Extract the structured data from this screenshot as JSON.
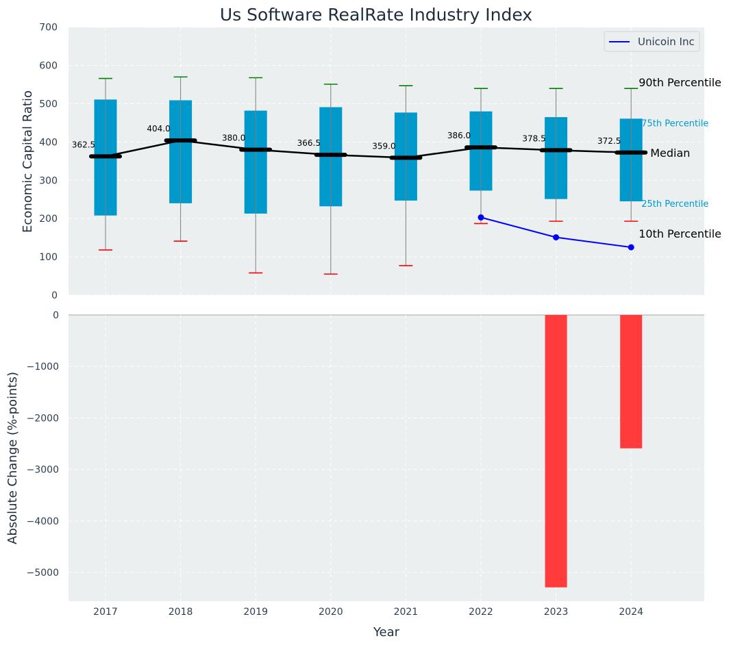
{
  "colors": {
    "box": "#0099cc",
    "whisker_top": "#008000",
    "whisker_bottom": "#ff0000",
    "median_line": "#000000",
    "company_line": "#0000ff",
    "change_bar": "#ff3b3b",
    "panel_bg": "#ebeff0"
  },
  "chart_data": [
    {
      "type": "box",
      "title": "Us Software RealRate Industry Index",
      "ylabel": "Economic Capital Ratio",
      "ylim": [
        0,
        700
      ],
      "yticks": [
        0,
        100,
        200,
        300,
        400,
        500,
        600,
        700
      ],
      "categories": [
        "2017",
        "2018",
        "2019",
        "2020",
        "2021",
        "2022",
        "2023",
        "2024"
      ],
      "p10": [
        118,
        141,
        58,
        55,
        77,
        187,
        193,
        193
      ],
      "p25": [
        208,
        240,
        213,
        232,
        247,
        273,
        251,
        245
      ],
      "median": [
        362.5,
        404.0,
        380.0,
        366.5,
        359.0,
        386.0,
        378.5,
        372.5
      ],
      "median_labels": [
        "362.5",
        "404.0",
        "380.0",
        "366.5",
        "359.0",
        "386.0",
        "378.5",
        "372.5"
      ],
      "p75": [
        511,
        509,
        482,
        491,
        477,
        480,
        465,
        461
      ],
      "p90": [
        566,
        570,
        568,
        551,
        547,
        540,
        540,
        540
      ],
      "percentile_labels": {
        "p90": "90th Percentile",
        "p75": "75th Percentile",
        "median": "Median",
        "p25": "25th Percentile",
        "p10": "10th Percentile"
      },
      "legend": {
        "position": "top-right",
        "entries": [
          "Unicoin Inc"
        ]
      },
      "series": [
        {
          "name": "Unicoin Inc",
          "x": [
            "2022",
            "2023",
            "2024"
          ],
          "values": [
            203,
            151,
            125
          ]
        }
      ],
      "grid": true
    },
    {
      "type": "bar",
      "xlabel": "Year",
      "ylabel": "Absolute Change (%-points)",
      "ylim": [
        -5550,
        0
      ],
      "yticks": [
        0,
        -1000,
        -2000,
        -3000,
        -4000,
        -5000
      ],
      "ytick_labels": [
        "0",
        "−1000",
        "−2000",
        "−3000",
        "−4000",
        "−5000"
      ],
      "categories": [
        "2017",
        "2018",
        "2019",
        "2020",
        "2021",
        "2022",
        "2023",
        "2024"
      ],
      "values": [
        null,
        null,
        null,
        null,
        null,
        null,
        -5290,
        -2590
      ],
      "grid": true
    }
  ]
}
